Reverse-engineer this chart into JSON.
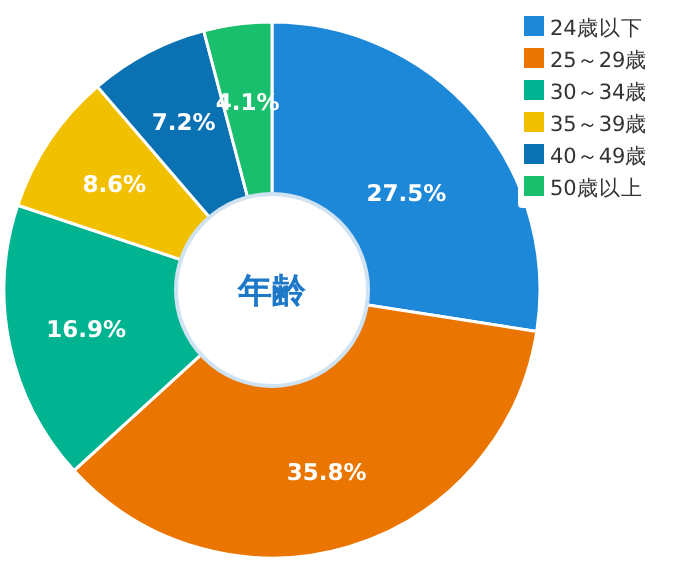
{
  "chart_data": {
    "type": "donut",
    "title": "年齢",
    "categories": [
      "24歳以下",
      "25～29歳",
      "30～34歳",
      "35～39歳",
      "40～49歳",
      "50歳以上"
    ],
    "values": [
      27.5,
      35.8,
      16.9,
      8.6,
      7.2,
      4.1
    ],
    "value_labels": [
      "27.5%",
      "35.8%",
      "16.9%",
      "8.6%",
      "7.2%",
      "4.1%"
    ],
    "colors": [
      "#1e88d8",
      "#ea7500",
      "#00b491",
      "#f1c000",
      "#0a72b2",
      "#19bf6c"
    ],
    "legend": "top right"
  }
}
